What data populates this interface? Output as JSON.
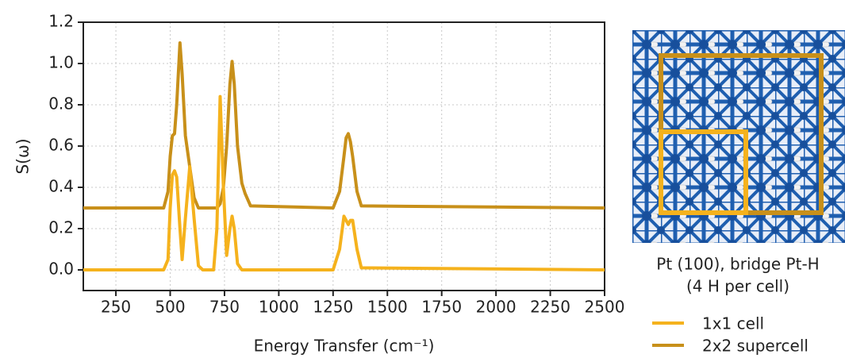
{
  "chart_data": {
    "type": "line",
    "x_label": "Energy Transfer (cm⁻¹)",
    "y_label": "S(ω)",
    "x": [
      100,
      470,
      490,
      500,
      510,
      520,
      530,
      545,
      555,
      570,
      590,
      610,
      630,
      650,
      700,
      715,
      730,
      745,
      760,
      775,
      785,
      795,
      810,
      830,
      845,
      870,
      1250,
      1280,
      1300,
      1310,
      1320,
      1330,
      1340,
      1360,
      1380,
      2500
    ],
    "series": [
      {
        "name": "1x1 cell",
        "color": "#f5b21d",
        "values": [
          0,
          0,
          0.05,
          0.3,
          0.46,
          0.48,
          0.45,
          0.2,
          0.05,
          0.25,
          0.5,
          0.25,
          0.02,
          0,
          0,
          0.2,
          0.84,
          0.4,
          0.07,
          0.2,
          0.26,
          0.2,
          0.03,
          0,
          0,
          0,
          0,
          0.1,
          0.26,
          0.24,
          0.22,
          0.24,
          0.24,
          0.1,
          0.01,
          0
        ]
      },
      {
        "name": "2x2 supercell",
        "color": "#c8901a",
        "values": [
          0.3,
          0.3,
          0.38,
          0.55,
          0.65,
          0.66,
          0.8,
          1.1,
          0.95,
          0.65,
          0.5,
          0.35,
          0.3,
          0.3,
          0.3,
          0.3,
          0.32,
          0.4,
          0.6,
          0.9,
          1.01,
          0.9,
          0.6,
          0.42,
          0.37,
          0.31,
          0.3,
          0.38,
          0.55,
          0.64,
          0.66,
          0.62,
          0.55,
          0.38,
          0.31,
          0.3
        ]
      }
    ],
    "xlim": [
      100,
      2500
    ],
    "ylim": [
      -0.1,
      1.2
    ],
    "xticks": [
      250,
      500,
      750,
      1000,
      1250,
      1500,
      1750,
      2000,
      2250,
      2500
    ],
    "yticks": [
      {
        "value": 0,
        "label": "0.0"
      },
      0.2,
      0.4,
      0.6,
      0.8,
      {
        "value": 1,
        "label": "1.0"
      },
      1.2
    ],
    "grid": true
  },
  "panel": {
    "caption": [
      "Pt (100), bridge Pt-H",
      "(4 H per cell)"
    ]
  }
}
